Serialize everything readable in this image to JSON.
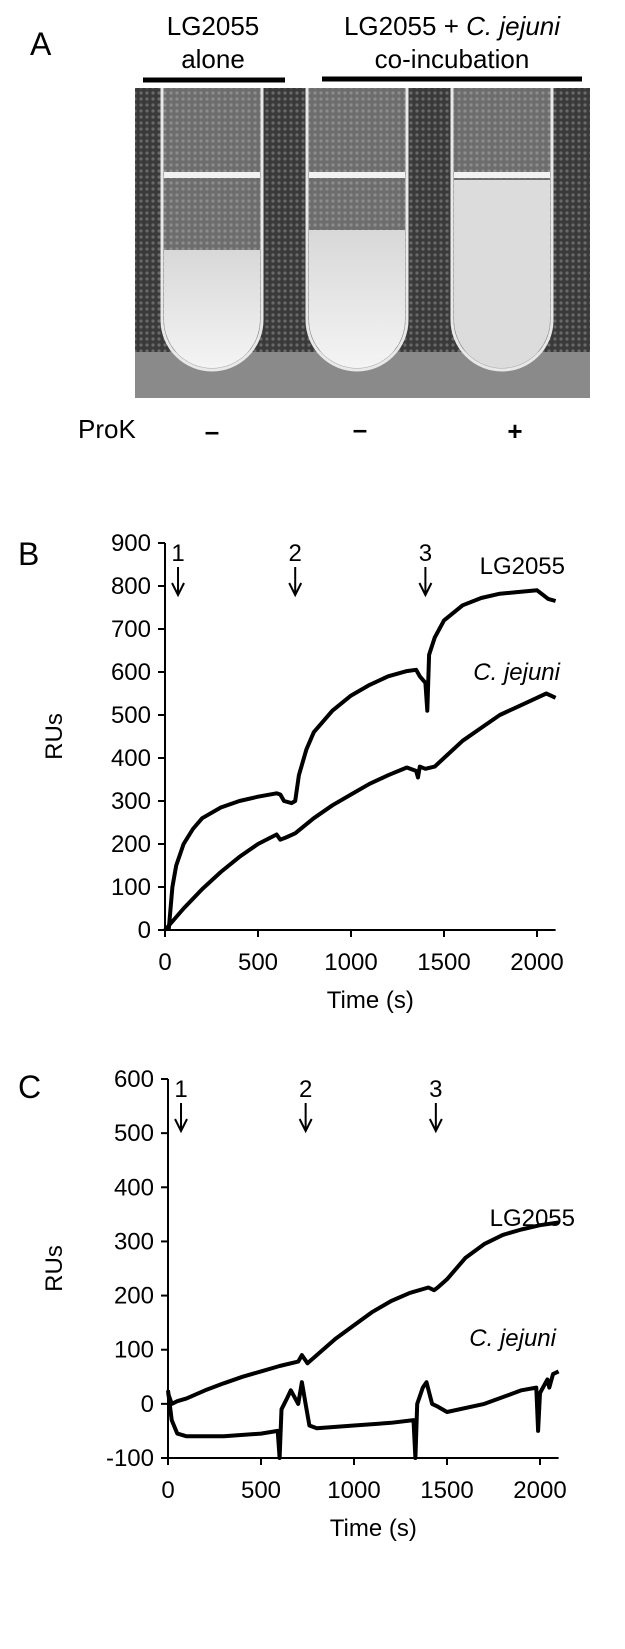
{
  "panel_a": {
    "panel_label": "A",
    "group_1": {
      "line1": "LG2055",
      "line2": "alone"
    },
    "group_2": {
      "line1": [
        "LG2055 + ",
        "C. jejuni"
      ],
      "line2": "co-incubation"
    },
    "row_label": "ProK",
    "treatments": [
      "–",
      "–",
      "+"
    ]
  },
  "chart_data": [
    {
      "type": "line",
      "panel_label": "B",
      "xlabel": "Time (s)",
      "ylabel": "RUs",
      "xlim": [
        0,
        2100
      ],
      "xticks": [
        0,
        500,
        1000,
        1500,
        2000
      ],
      "ylim": [
        0,
        900
      ],
      "yticks": [
        0,
        100,
        200,
        300,
        400,
        500,
        600,
        700,
        800,
        900
      ],
      "events": [
        {
          "label": "1",
          "x": 70
        },
        {
          "label": "2",
          "x": 700
        },
        {
          "label": "3",
          "x": 1400
        }
      ],
      "series": [
        {
          "name": "LG2055",
          "color": "#000000",
          "x": [
            20,
            40,
            60,
            100,
            150,
            200,
            300,
            400,
            500,
            600,
            620,
            640,
            680,
            700,
            720,
            760,
            800,
            900,
            1000,
            1100,
            1200,
            1300,
            1350,
            1370,
            1400,
            1410,
            1420,
            1450,
            1500,
            1600,
            1700,
            1800,
            1900,
            2000,
            2030,
            2060,
            2100
          ],
          "values": [
            0,
            100,
            150,
            200,
            235,
            260,
            285,
            300,
            310,
            318,
            315,
            300,
            295,
            300,
            360,
            420,
            460,
            510,
            545,
            570,
            590,
            602,
            605,
            590,
            575,
            510,
            640,
            680,
            720,
            755,
            772,
            782,
            786,
            790,
            780,
            770,
            765
          ]
        },
        {
          "name": "C. jejuni",
          "color": "#000000",
          "x": [
            0,
            100,
            200,
            300,
            400,
            500,
            600,
            620,
            650,
            700,
            800,
            900,
            1000,
            1100,
            1200,
            1300,
            1350,
            1360,
            1370,
            1400,
            1450,
            1500,
            1600,
            1700,
            1800,
            1900,
            2000,
            2050,
            2100
          ],
          "values": [
            0,
            50,
            95,
            135,
            170,
            200,
            222,
            210,
            215,
            225,
            260,
            290,
            315,
            340,
            360,
            378,
            370,
            355,
            380,
            375,
            380,
            400,
            440,
            470,
            500,
            520,
            540,
            550,
            540
          ]
        }
      ]
    },
    {
      "type": "line",
      "panel_label": "C",
      "xlabel": "Time (s)",
      "ylabel": "RUs",
      "xlim": [
        0,
        2100
      ],
      "xticks": [
        0,
        500,
        1000,
        1500,
        2000
      ],
      "ylim": [
        -100,
        600
      ],
      "yticks": [
        -100,
        0,
        100,
        200,
        300,
        400,
        500,
        600
      ],
      "events": [
        {
          "label": "1",
          "x": 70
        },
        {
          "label": "2",
          "x": 740
        },
        {
          "label": "3",
          "x": 1440
        }
      ],
      "series": [
        {
          "name": "LG2055",
          "color": "#000000",
          "x": [
            0,
            20,
            50,
            100,
            200,
            300,
            400,
            500,
            600,
            700,
            720,
            750,
            800,
            900,
            1000,
            1100,
            1200,
            1300,
            1400,
            1430,
            1450,
            1500,
            1600,
            1700,
            1800,
            1900,
            2000,
            2100
          ],
          "values": [
            20,
            0,
            5,
            10,
            25,
            38,
            50,
            60,
            70,
            78,
            90,
            75,
            90,
            120,
            145,
            170,
            190,
            205,
            215,
            210,
            215,
            230,
            270,
            295,
            312,
            322,
            330,
            335
          ]
        },
        {
          "name": "C. jejuni",
          "color": "#000000",
          "x": [
            0,
            20,
            50,
            100,
            300,
            500,
            590,
            600,
            610,
            640,
            660,
            700,
            720,
            740,
            760,
            800,
            1000,
            1200,
            1320,
            1330,
            1340,
            1370,
            1390,
            1420,
            1450,
            1500,
            1700,
            1900,
            1980,
            1990,
            2000,
            2040,
            2050,
            2070,
            2100
          ],
          "values": [
            25,
            -30,
            -55,
            -60,
            -60,
            -55,
            -50,
            -100,
            -10,
            10,
            25,
            0,
            40,
            0,
            -40,
            -45,
            -40,
            -35,
            -30,
            -100,
            0,
            30,
            40,
            0,
            -5,
            -15,
            0,
            25,
            30,
            -50,
            20,
            45,
            30,
            55,
            60
          ]
        }
      ]
    }
  ]
}
